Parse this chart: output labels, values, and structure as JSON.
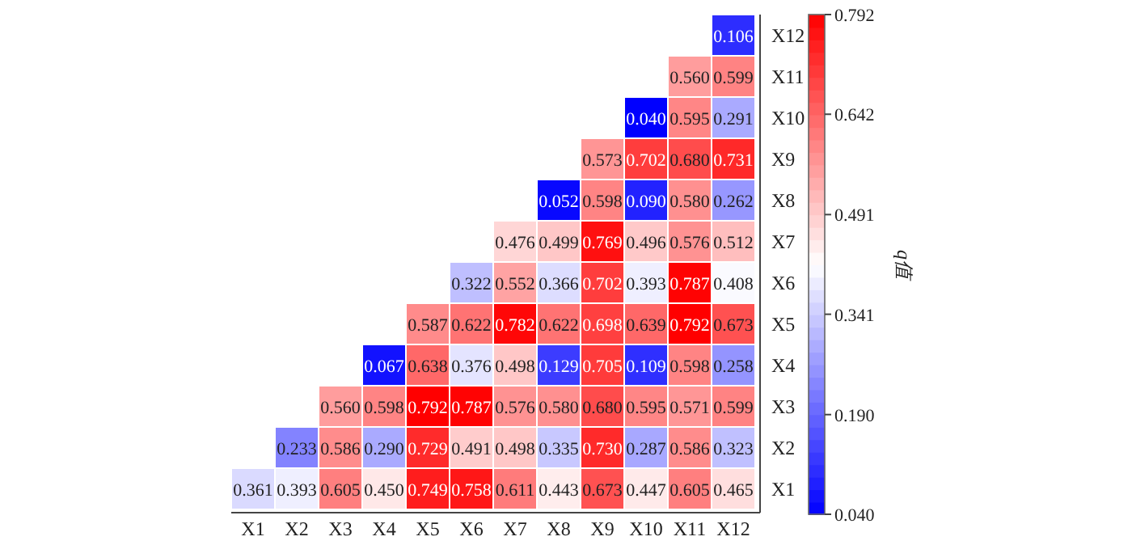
{
  "chart_data": {
    "type": "heatmap",
    "clabel": "q值",
    "categories": [
      "X1",
      "X2",
      "X3",
      "X4",
      "X5",
      "X6",
      "X7",
      "X8",
      "X9",
      "X10",
      "X11",
      "X12"
    ],
    "y_categories": [
      "X12",
      "X11",
      "X10",
      "X9",
      "X8",
      "X7",
      "X6",
      "X5",
      "X4",
      "X3",
      "X2",
      "X1"
    ],
    "cells": [
      [
        null,
        null,
        null,
        null,
        null,
        null,
        null,
        null,
        null,
        null,
        null,
        0.106
      ],
      [
        null,
        null,
        null,
        null,
        null,
        null,
        null,
        null,
        null,
        null,
        0.56,
        0.599
      ],
      [
        null,
        null,
        null,
        null,
        null,
        null,
        null,
        null,
        null,
        0.04,
        0.595,
        0.291
      ],
      [
        null,
        null,
        null,
        null,
        null,
        null,
        null,
        null,
        0.573,
        0.702,
        0.68,
        0.731
      ],
      [
        null,
        null,
        null,
        null,
        null,
        null,
        null,
        0.052,
        0.598,
        0.09,
        0.58,
        0.262
      ],
      [
        null,
        null,
        null,
        null,
        null,
        null,
        0.476,
        0.499,
        0.769,
        0.496,
        0.576,
        0.512
      ],
      [
        null,
        null,
        null,
        null,
        null,
        0.322,
        0.552,
        0.366,
        0.702,
        0.393,
        0.787,
        0.408
      ],
      [
        null,
        null,
        null,
        null,
        0.587,
        0.622,
        0.782,
        0.622,
        0.698,
        0.639,
        0.792,
        0.673
      ],
      [
        null,
        null,
        null,
        0.067,
        0.638,
        0.376,
        0.498,
        0.129,
        0.705,
        0.109,
        0.598,
        0.258
      ],
      [
        null,
        null,
        0.56,
        0.598,
        0.792,
        0.787,
        0.576,
        0.58,
        0.68,
        0.595,
        0.571,
        0.599
      ],
      [
        null,
        0.233,
        0.586,
        0.29,
        0.729,
        0.491,
        0.498,
        0.335,
        0.73,
        0.287,
        0.586,
        0.323
      ],
      [
        0.361,
        0.393,
        0.605,
        0.45,
        0.749,
        0.758,
        0.611,
        0.443,
        0.673,
        0.447,
        0.605,
        0.465
      ]
    ],
    "clim": [
      0.04,
      0.792
    ],
    "cticks": [
      {
        "value": 0.04,
        "label": "0.040"
      },
      {
        "value": 0.19,
        "label": "0.190"
      },
      {
        "value": 0.341,
        "label": "0.341"
      },
      {
        "value": 0.491,
        "label": "0.491"
      },
      {
        "value": 0.642,
        "label": "0.642"
      },
      {
        "value": 0.792,
        "label": "0.792"
      }
    ],
    "cell_labels": [
      [
        null,
        null,
        null,
        null,
        null,
        null,
        null,
        null,
        null,
        null,
        null,
        "0.106"
      ],
      [
        null,
        null,
        null,
        null,
        null,
        null,
        null,
        null,
        null,
        null,
        "0.560",
        "0.599"
      ],
      [
        null,
        null,
        null,
        null,
        null,
        null,
        null,
        null,
        null,
        "0.040",
        "0.595",
        "0.291"
      ],
      [
        null,
        null,
        null,
        null,
        null,
        null,
        null,
        null,
        "0.573",
        "0.702",
        "0.680",
        "0.731"
      ],
      [
        null,
        null,
        null,
        null,
        null,
        null,
        null,
        "0.052",
        "0.598",
        "0.090",
        "0.580",
        "0.262"
      ],
      [
        null,
        null,
        null,
        null,
        null,
        null,
        "0.476",
        "0.499",
        "0.769",
        "0.496",
        "0.576",
        "0.512"
      ],
      [
        null,
        null,
        null,
        null,
        null,
        "0.322",
        "0.552",
        "0.366",
        "0.702",
        "0.393",
        "0.787",
        "0.408"
      ],
      [
        null,
        null,
        null,
        null,
        "0.587",
        "0.622",
        "0.782",
        "0.622",
        "0.698",
        "0.639",
        "0.792",
        "0.673"
      ],
      [
        null,
        null,
        null,
        "0.067",
        "0.638",
        "0.376",
        "0.498",
        "0.129",
        "0.705",
        "0.109",
        "0.598",
        "0.258"
      ],
      [
        null,
        null,
        "0.560",
        "0.598",
        "0.792",
        "0.787",
        "0.576",
        "0.580",
        "0.680",
        "0.595",
        "0.571",
        "0.599"
      ],
      [
        null,
        "0.233",
        "0.586",
        "0.290",
        "0.729",
        "0.491",
        "0.498",
        "0.335",
        "0.730",
        "0.287",
        "0.586",
        "0.323"
      ],
      [
        "0.361",
        "0.393",
        "0.605",
        "0.450",
        "0.749",
        "0.758",
        "0.611",
        "0.443",
        "0.673",
        "0.447",
        "0.605",
        "0.465"
      ]
    ]
  }
}
